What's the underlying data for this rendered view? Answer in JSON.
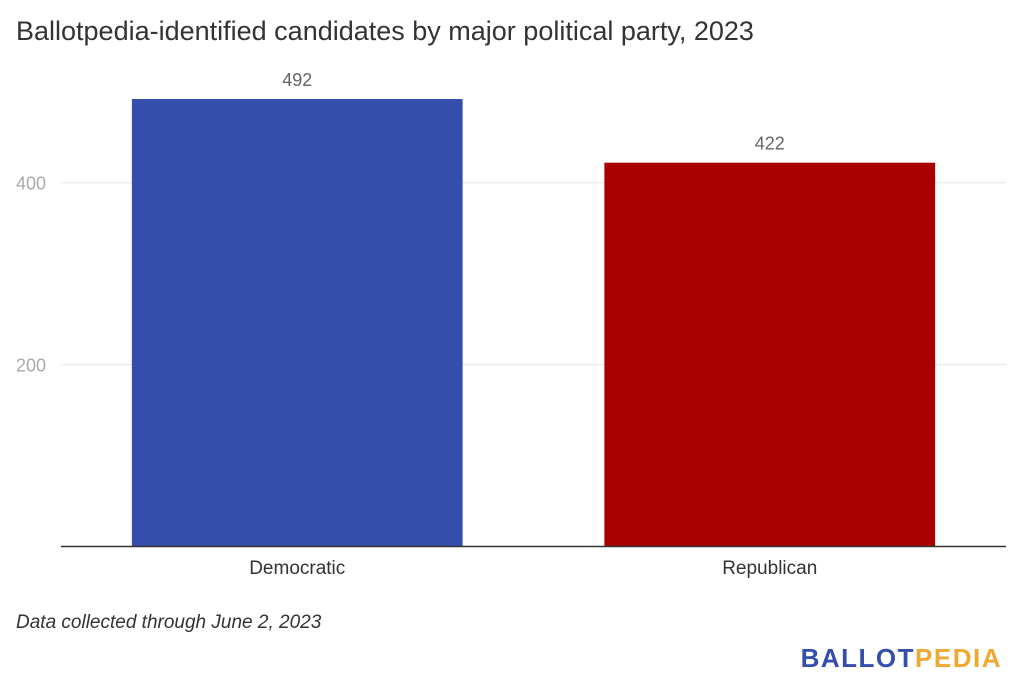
{
  "chart_data": {
    "type": "bar",
    "title": "Ballotpedia-identified candidates by major political party, 2023",
    "categories": [
      "Democratic",
      "Republican"
    ],
    "values": [
      492,
      422
    ],
    "colors": [
      "#344eab",
      "#aa0000"
    ],
    "data_labels": [
      "492",
      "422"
    ],
    "yticks": [
      200,
      400
    ],
    "ytick_labels": [
      "200",
      "400"
    ],
    "ylim": [
      0,
      500
    ],
    "xlabel": "",
    "ylabel": "",
    "grid": true,
    "legend": "none"
  },
  "footnote": "Data collected through June 2, 2023",
  "brand": {
    "part1": "BALLOT",
    "part2": "PEDIA",
    "color1": "#344eab",
    "color2": "#f0a830"
  }
}
